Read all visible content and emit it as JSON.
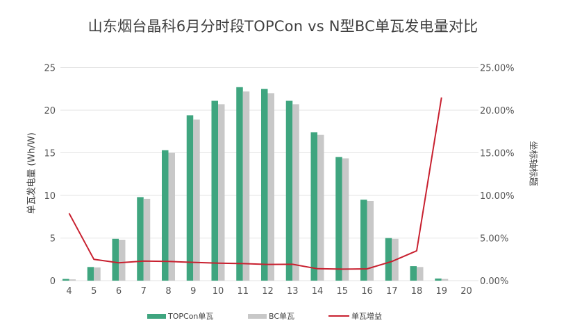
{
  "title": "山东烟台晶科6月分时段TOPCon vs N型BC单瓦发电量对比",
  "axes": {
    "left_title": "单瓦发电量 (Wh/W)",
    "right_title": "坐标轴标题",
    "left_ticks": [
      "0",
      "5",
      "10",
      "15",
      "20",
      "25"
    ],
    "right_ticks": [
      "0.00%",
      "5.00%",
      "10.00%",
      "15.00%",
      "20.00%",
      "25.00%"
    ],
    "x_ticks": [
      "4",
      "5",
      "6",
      "7",
      "8",
      "9",
      "10",
      "11",
      "12",
      "13",
      "14",
      "15",
      "16",
      "17",
      "18",
      "19",
      "20"
    ]
  },
  "legend": {
    "topcon": "TOPCon单瓦",
    "bc": "BC单瓦",
    "gain": "单瓦增益"
  },
  "colors": {
    "topcon": "#3fa57f",
    "bc": "#c8c8c8",
    "gain": "#c8202f",
    "grid": "#e3e3e3"
  },
  "chart_data": {
    "type": "bar+line",
    "title": "山东烟台晶科6月分时段TOPCon vs N型BC单瓦发电量对比",
    "xlabel": "",
    "ylabel": "单瓦发电量 (Wh/W)",
    "y2label": "坐标轴标题",
    "ylim": [
      0,
      25
    ],
    "y2lim": [
      0,
      0.25
    ],
    "grid": true,
    "legend_position": "bottom",
    "categories": [
      4,
      5,
      6,
      7,
      8,
      9,
      10,
      11,
      12,
      13,
      14,
      15,
      16,
      17,
      18,
      19,
      20
    ],
    "series": [
      {
        "name": "TOPCon单瓦",
        "type": "bar",
        "axis": "left",
        "values": [
          0.2,
          1.6,
          4.9,
          9.8,
          15.3,
          19.4,
          21.1,
          22.7,
          22.5,
          21.1,
          17.4,
          14.5,
          9.5,
          5.0,
          1.7,
          0.25,
          0
        ]
      },
      {
        "name": "BC单瓦",
        "type": "bar",
        "axis": "left",
        "values": [
          0.15,
          1.55,
          4.8,
          9.6,
          15.0,
          18.9,
          20.7,
          22.2,
          22.0,
          20.7,
          17.1,
          14.35,
          9.35,
          4.9,
          1.6,
          0.2,
          0
        ]
      },
      {
        "name": "单瓦增益",
        "type": "line",
        "axis": "right",
        "values": [
          0.079,
          0.025,
          0.021,
          0.023,
          0.0225,
          0.0215,
          0.0205,
          0.02,
          0.019,
          0.0192,
          0.014,
          0.0135,
          0.0138,
          0.0225,
          0.035,
          0.215,
          null
        ]
      }
    ]
  }
}
